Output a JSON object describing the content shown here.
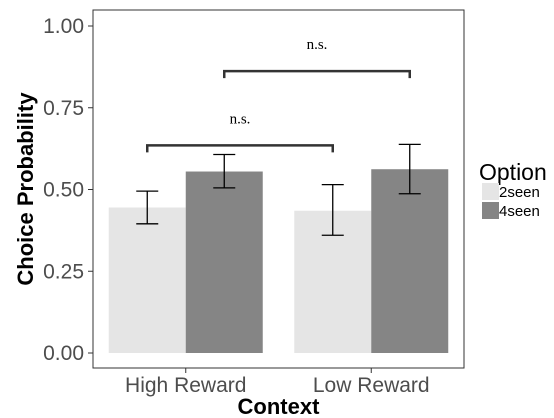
{
  "chart_data": {
    "type": "bar",
    "categories": [
      "High Reward",
      "Low Reward"
    ],
    "series": [
      {
        "name": "2seen",
        "values": [
          0.445,
          0.435
        ],
        "error_low": [
          0.395,
          0.36
        ],
        "error_high": [
          0.495,
          0.515
        ]
      },
      {
        "name": "4seen",
        "values": [
          0.555,
          0.562
        ],
        "error_low": [
          0.505,
          0.487
        ],
        "error_high": [
          0.607,
          0.638
        ]
      }
    ],
    "xlabel": "Context",
    "ylabel": "Choice Probability",
    "ylim": [
      0,
      1
    ],
    "yticks": [
      "0.00",
      "0.25",
      "0.50",
      "0.75",
      "1.00"
    ],
    "grid": false,
    "legend": {
      "title": "Option",
      "placement": "right"
    },
    "colors": {
      "2seen": "#e5e5e5",
      "4seen": "#858585"
    },
    "annotations": [
      {
        "text": "n.s.",
        "from": "High Reward 2seen",
        "to": "Low Reward 2seen"
      },
      {
        "text": "n.s.",
        "from": "High Reward 4seen",
        "to": "Low Reward 4seen"
      }
    ]
  }
}
